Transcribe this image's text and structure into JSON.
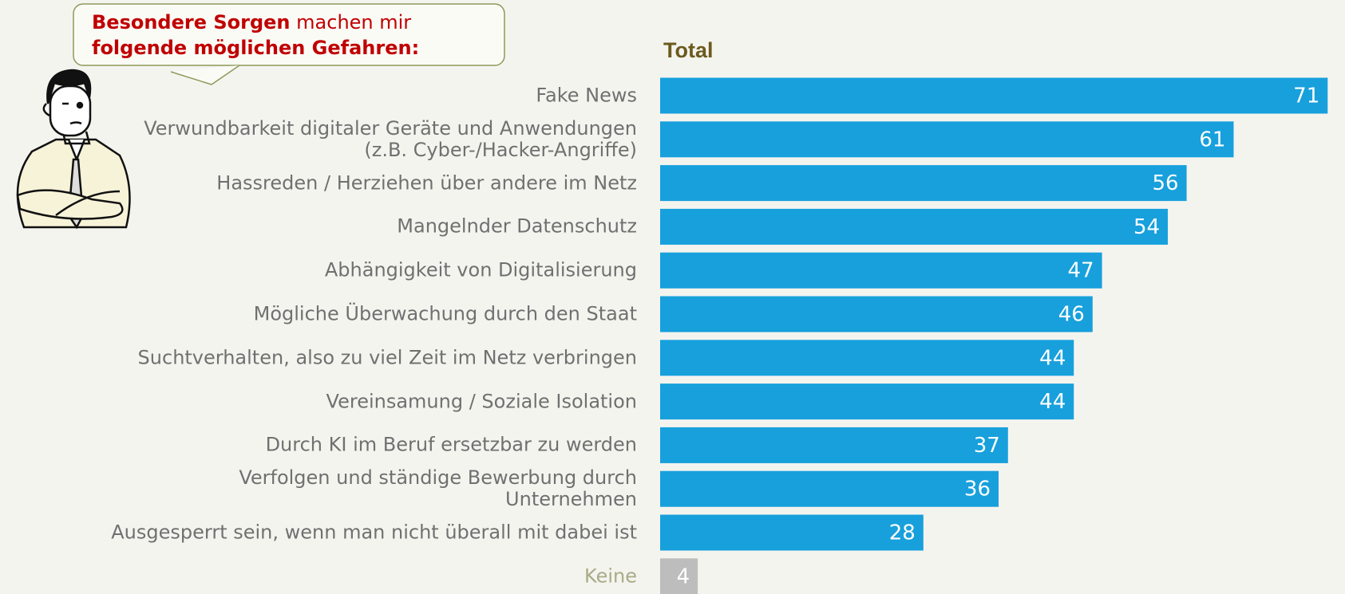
{
  "chart_data": {
    "type": "bar",
    "orientation": "horizontal",
    "callout": [
      "Besondere Sorgen",
      "machen mir",
      "folgende möglichen Gefahren:"
    ],
    "title": "Total",
    "categories": [
      "Fake News",
      "Verwundbarkeit digitaler Geräte und Anwendungen\n(z.B. Cyber-/Hacker-Angriffe)",
      "Hassreden / Herziehen über andere im Netz",
      "Mangelnder Datenschutz",
      "Abhängigkeit von Digitalisierung",
      "Mögliche Überwachung durch den Staat",
      "Suchtverhalten, also zu viel Zeit im Netz verbringen",
      "Vereinsamung / Soziale Isolation",
      "Durch KI im Beruf ersetzbar zu werden",
      "Verfolgen und ständige Bewerbung durch\nUnternehmen",
      "Ausgesperrt sein, wenn man nicht überall mit dabei ist",
      "Keine"
    ],
    "values": [
      71,
      61,
      56,
      54,
      47,
      46,
      44,
      44,
      37,
      36,
      28,
      4
    ],
    "colors": [
      "#17a0dc",
      "#17a0dc",
      "#17a0dc",
      "#17a0dc",
      "#17a0dc",
      "#17a0dc",
      "#17a0dc",
      "#17a0dc",
      "#17a0dc",
      "#17a0dc",
      "#17a0dc",
      "#bdbdbd"
    ],
    "label_colors": [
      "#707070",
      "#707070",
      "#707070",
      "#707070",
      "#707070",
      "#707070",
      "#707070",
      "#707070",
      "#707070",
      "#707070",
      "#707070",
      "#a9ab86"
    ]
  }
}
